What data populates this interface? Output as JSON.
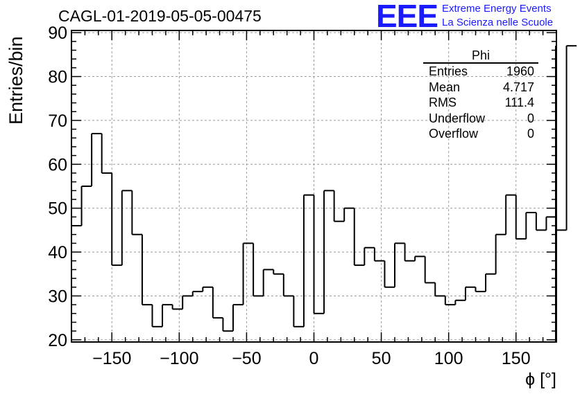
{
  "title": "CAGL-01-2019-05-05-00475",
  "logo": {
    "mark": "EEE",
    "line1": "Extreme Energy Events",
    "line2": "La Scienza nelle Scuole"
  },
  "stats_box": {
    "name": "Phi",
    "rows": [
      {
        "label": "Entries",
        "value": "1960"
      },
      {
        "label": "Mean",
        "value": "4.717"
      },
      {
        "label": "RMS",
        "value": "111.4"
      },
      {
        "label": "Underflow",
        "value": "0"
      },
      {
        "label": "Overflow",
        "value": "0"
      }
    ]
  },
  "colors": {
    "line": "#000000",
    "grid": "#999999",
    "logo": "#1a1aff"
  },
  "chart_data": {
    "type": "histogram",
    "title": "CAGL-01-2019-05-05-00475",
    "xlabel": "ϕ [°]",
    "ylabel": "Entries/bin",
    "xlim": [
      -180,
      180
    ],
    "ylim": [
      19.5,
      90.5
    ],
    "bin_width": 7.5,
    "bin_edges_start": -180,
    "x_ticks": [
      -150,
      -100,
      -50,
      0,
      50,
      100,
      150
    ],
    "x_tick_labels": [
      "−150",
      "−100",
      "−50",
      "0",
      "50",
      "100",
      "150"
    ],
    "y_ticks": [
      20,
      30,
      40,
      50,
      60,
      70,
      80,
      90
    ],
    "grid": true,
    "values": [
      46,
      55,
      67,
      58,
      37,
      54,
      44,
      28,
      23,
      28,
      27,
      30,
      31,
      32,
      25,
      22,
      28,
      42,
      30,
      36,
      35,
      30,
      23,
      53,
      26,
      54,
      47,
      50,
      37,
      41,
      38,
      32,
      42,
      38,
      39,
      33,
      30,
      28,
      29,
      32,
      31,
      35,
      44,
      53,
      43,
      49,
      45,
      48,
      45,
      87
    ]
  }
}
